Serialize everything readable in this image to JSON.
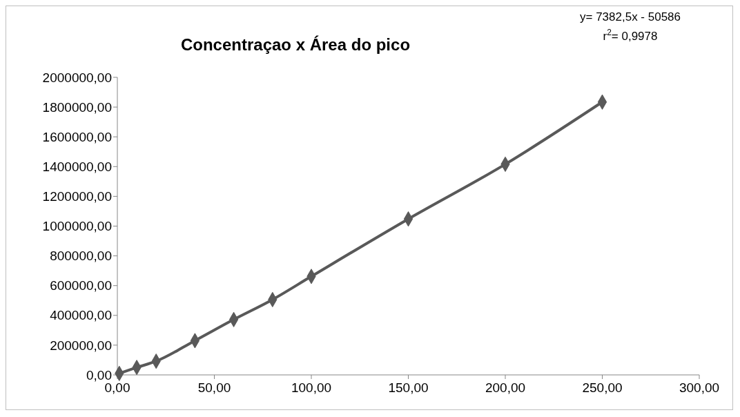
{
  "chart_data": {
    "type": "line",
    "title": "Concentraçao x Área do pico",
    "annotations": [
      "y= 7382,5x - 50586",
      "r$^{2}$= 0,9978"
    ],
    "x": [
      1,
      10,
      20,
      40,
      60,
      80,
      100,
      150,
      200,
      250
    ],
    "series": [
      {
        "color": "#595959",
        "values": [
          10000,
          50000,
          92000,
          230000,
          372000,
          506000,
          662000,
          1048000,
          1416000,
          1834000
        ]
      }
    ],
    "xlim": [
      0,
      300
    ],
    "xticks": [
      {
        "value": 0,
        "label": "0,00"
      },
      {
        "value": 50,
        "label": "50,00"
      },
      {
        "value": 100,
        "label": "100,00"
      },
      {
        "value": 150,
        "label": "150,00"
      },
      {
        "value": 200,
        "label": "200,00"
      },
      {
        "value": 250,
        "label": "250,00"
      },
      {
        "value": 300,
        "label": "300,00"
      }
    ],
    "ylim": [
      0,
      2000000
    ],
    "yticks": [
      {
        "value": 0,
        "label": "0,00"
      },
      {
        "value": 200000,
        "label": "200000,00"
      },
      {
        "value": 400000,
        "label": "400000,00"
      },
      {
        "value": 600000,
        "label": "600000,00"
      },
      {
        "value": 800000,
        "label": "800000,00"
      },
      {
        "value": 1000000,
        "label": "1000000,00"
      },
      {
        "value": 1200000,
        "label": "1200000,00"
      },
      {
        "value": 1400000,
        "label": "1400000,00"
      },
      {
        "value": 1600000,
        "label": "1600000,00"
      },
      {
        "value": 1800000,
        "label": "1800000,00"
      },
      {
        "value": 2000000,
        "label": "2000000,00"
      }
    ],
    "marker": "diamond",
    "line_style": "solid"
  }
}
